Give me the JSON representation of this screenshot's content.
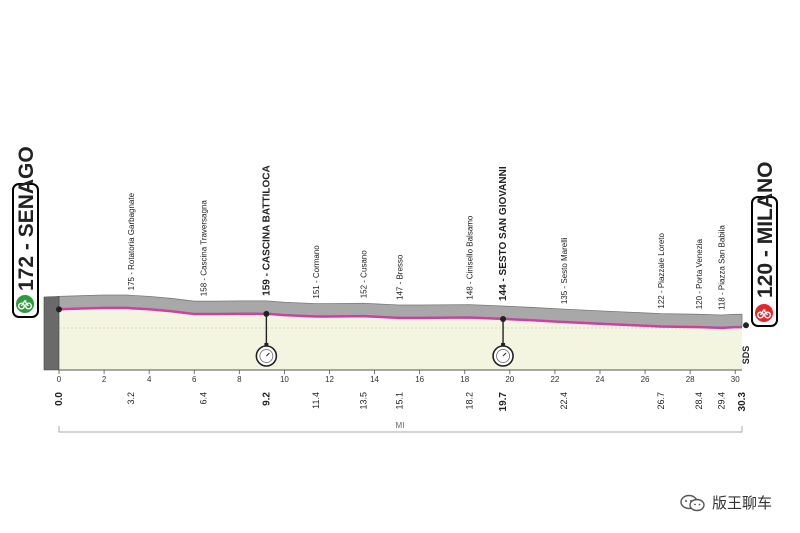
{
  "chart_data": {
    "type": "area",
    "title": "",
    "xlabel": "",
    "unit_label": "MI",
    "x_ticks": [
      0,
      2,
      4,
      6,
      8,
      10,
      12,
      14,
      16,
      18,
      20,
      22,
      24,
      26,
      28,
      30
    ],
    "xlim": [
      0,
      30.3
    ],
    "start": {
      "elevation": "172",
      "name": "SENAGO",
      "label": "172 - SENAGO",
      "icon": "green-start-icon"
    },
    "finish": {
      "elevation": "120",
      "name": "MILANO",
      "label": "120 - MILANO",
      "icon": "red-finish-icon"
    },
    "waypoints": [
      {
        "dist": 0.0,
        "dist_label": "0.0",
        "label": "",
        "bold": true
      },
      {
        "dist": 3.2,
        "dist_label": "3.2",
        "label": "175 - Rotatoria Garbagnate",
        "bold": false
      },
      {
        "dist": 6.4,
        "dist_label": "6.4",
        "label": "158 - Cascina Traversagna",
        "bold": false
      },
      {
        "dist": 9.2,
        "dist_label": "9.2",
        "label": "159 - CASCINA BATTILOCA",
        "bold": true
      },
      {
        "dist": 11.4,
        "dist_label": "11.4",
        "label": "151 - Cormano",
        "bold": false
      },
      {
        "dist": 13.5,
        "dist_label": "13.5",
        "label": "152 - Cusano",
        "bold": false
      },
      {
        "dist": 15.1,
        "dist_label": "15.1",
        "label": "147 - Bresso",
        "bold": false
      },
      {
        "dist": 18.2,
        "dist_label": "18.2",
        "label": "148 - Cinisello Balsamo",
        "bold": false
      },
      {
        "dist": 19.7,
        "dist_label": "19.7",
        "label": "144 - SESTO SAN GIOVANNI",
        "bold": true
      },
      {
        "dist": 22.4,
        "dist_label": "22.4",
        "label": "135 - Sesto Marelli",
        "bold": false
      },
      {
        "dist": 26.7,
        "dist_label": "26.7",
        "label": "122 - Piazzale Loreto",
        "bold": false
      },
      {
        "dist": 28.4,
        "dist_label": "28.4",
        "label": "120 - Porta Venezia",
        "bold": false
      },
      {
        "dist": 29.4,
        "dist_label": "29.4",
        "label": "118 - Piazza San Babila",
        "bold": false
      },
      {
        "dist": 30.3,
        "dist_label": "30.3",
        "label": "",
        "bold": true
      }
    ],
    "checkpoints": [
      {
        "dist": 9.2,
        "type": "intermediate time check",
        "icon": "stopwatch-icon"
      },
      {
        "dist": 19.7,
        "type": "intermediate time check",
        "icon": "stopwatch-icon"
      }
    ],
    "elevation_profile": {
      "x": [
        0,
        1,
        2,
        3,
        3.2,
        4,
        5,
        6,
        6.4,
        7,
        8,
        9.2,
        10,
        11.4,
        12,
        13.5,
        15.1,
        16,
        18.2,
        19.7,
        21,
        22.4,
        24,
        26.7,
        28.4,
        29.4,
        30,
        30.3
      ],
      "y": [
        172,
        174,
        176,
        176,
        175,
        172,
        166,
        158,
        158,
        158,
        159,
        159,
        155,
        151,
        151,
        152,
        147,
        147,
        148,
        144,
        140,
        135,
        130,
        122,
        120,
        118,
        120,
        120
      ]
    },
    "finish_marker": "SDS",
    "colors": {
      "start": "#2e9a3c",
      "finish": "#e0282f",
      "route_line": "#d63aa6",
      "terrain_fill": "#f4f5e0",
      "profile_edge": "#b4b4b4"
    }
  },
  "footer": {
    "brand": "版王聊车",
    "icon": "wechat-icon"
  }
}
